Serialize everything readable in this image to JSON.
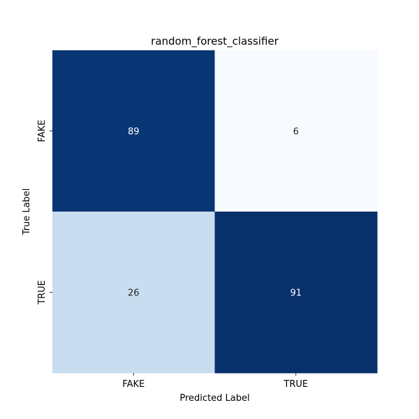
{
  "chart_data": {
    "type": "heatmap",
    "title": "random_forest_classifier",
    "xlabel": "Predicted Label",
    "ylabel": "True Label",
    "x_categories": [
      "FAKE",
      "TRUE"
    ],
    "y_categories": [
      "FAKE",
      "TRUE"
    ],
    "values": [
      [
        89,
        6
      ],
      [
        26,
        91
      ]
    ],
    "colormap": "Blues",
    "vmin": 6,
    "vmax": 91,
    "colorbar": false,
    "grid": false,
    "colors": {
      "low": "#f7fbff",
      "mid_low": "#c6dbef",
      "high": "#08306b",
      "text_on_dark": "#ffffff",
      "text_on_light": "#262626"
    }
  }
}
